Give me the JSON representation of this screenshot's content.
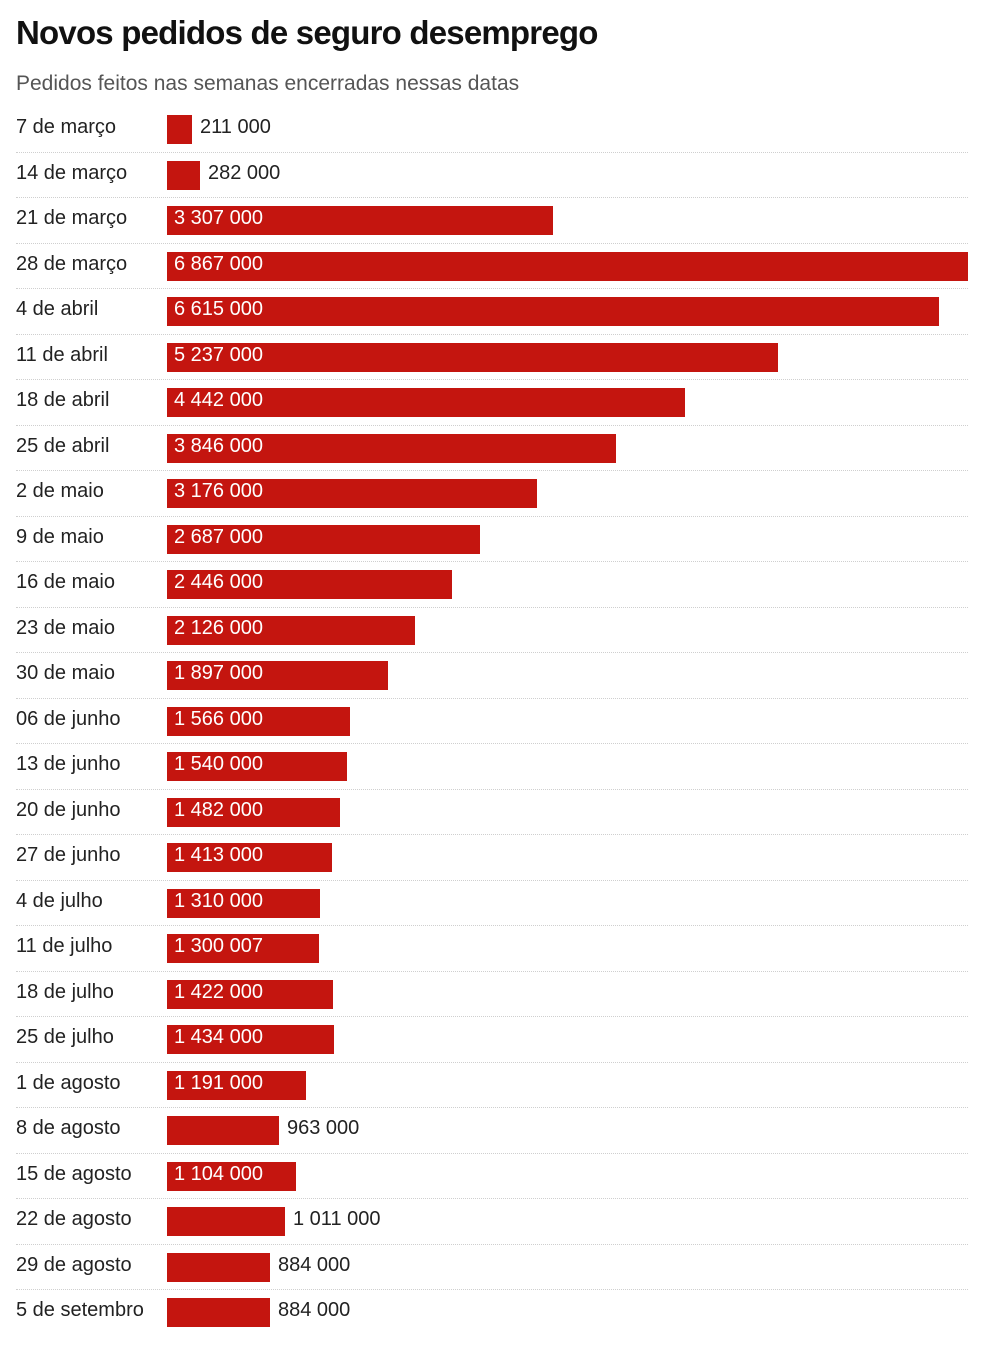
{
  "title": "Novos pedidos de seguro desemprego",
  "subtitle": "Pedidos feitos nas semanas encerradas nessas datas",
  "colors": {
    "bar": "#c4150f",
    "value_inside": "#ffffff",
    "value_outside": "#222222"
  },
  "chart_data": {
    "type": "bar",
    "orientation": "horizontal",
    "title": "Novos pedidos de seguro desemprego",
    "subtitle": "Pedidos feitos nas semanas encerradas nessas datas",
    "xlim": [
      0,
      6867000
    ],
    "grid": false,
    "categories": [
      "7 de março",
      "14 de março",
      "21 de março",
      "28 de março",
      "4 de abril",
      "11 de abril",
      "18 de abril",
      "25 de abril",
      "2 de maio",
      "9 de maio",
      "16 de maio",
      "23 de maio",
      "30 de maio",
      "06 de junho",
      "13 de junho",
      "20 de junho",
      "27 de junho",
      "4 de julho",
      "11 de julho",
      "18 de julho",
      "25 de julho",
      "1 de agosto",
      "8 de agosto",
      "15 de agosto",
      "22 de agosto",
      "29 de agosto",
      "5 de setembro"
    ],
    "values": [
      211000,
      282000,
      3307000,
      6867000,
      6615000,
      5237000,
      4442000,
      3846000,
      3176000,
      2687000,
      2446000,
      2126000,
      1897000,
      1566000,
      1540000,
      1482000,
      1413000,
      1310000,
      1300007,
      1422000,
      1434000,
      1191000,
      963000,
      1104000,
      1011000,
      884000,
      884000
    ],
    "value_labels": [
      "211 000",
      "282 000",
      "3 307 000",
      "6 867 000",
      "6 615 000",
      "5 237 000",
      "4 442 000",
      "3 846 000",
      "3 176 000",
      "2 687 000",
      "2 446 000",
      "2 126 000",
      "1 897 000",
      "1 566 000",
      "1 540 000",
      "1 482 000",
      "1 413 000",
      "1 310 000",
      "1 300 007",
      "1 422 000",
      "1 434 000",
      "1 191 000",
      "963 000",
      "1 104 000",
      "1 011 000",
      "884 000",
      "884 000"
    ]
  }
}
